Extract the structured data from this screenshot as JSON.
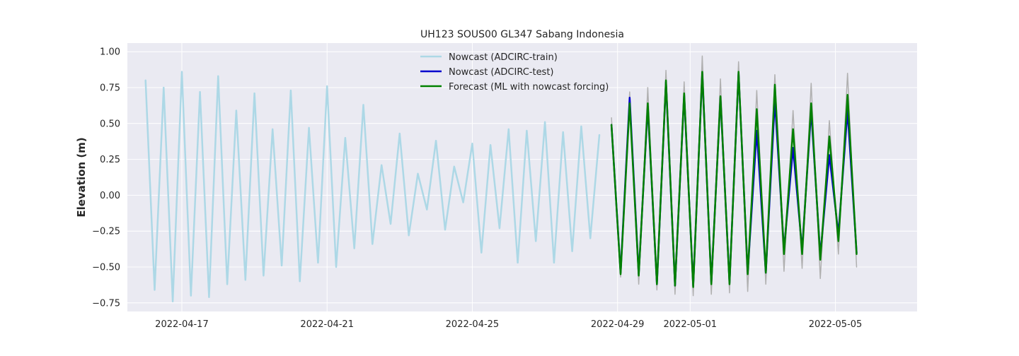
{
  "chart_data": {
    "type": "line",
    "title": "UH123 SOUS00 GL347 Sabang Indonesia",
    "xlabel": "",
    "ylabel": "Elevation (m)",
    "x_type": "date",
    "xlim": [
      "2022-04-15T12:00",
      "2022-05-07T06:00"
    ],
    "ylim": [
      -0.81,
      1.06
    ],
    "x_ticks": [
      "2022-04-17",
      "2022-04-21",
      "2022-04-25",
      "2022-04-29",
      "2022-05-01",
      "2022-05-05"
    ],
    "y_ticks": [
      1.0,
      0.75,
      0.5,
      0.25,
      0.0,
      -0.25,
      -0.5,
      -0.75
    ],
    "y_tick_labels": [
      "1.00",
      "0.75",
      "0.50",
      "0.25",
      "0.00",
      "−0.25",
      "−0.50",
      "−0.75"
    ],
    "grid": true,
    "background": "#eaeaf2",
    "legend_position": "upper-center",
    "series": [
      {
        "name": "",
        "color": "#b0b0b0",
        "x": [
          "2022-04-28T20:00",
          "2022-04-29T02:00",
          "2022-04-29T08:00",
          "2022-04-29T14:00",
          "2022-04-29T20:00",
          "2022-04-30T02:00",
          "2022-04-30T08:00",
          "2022-04-30T14:00",
          "2022-04-30T20:00",
          "2022-05-01T02:00",
          "2022-05-01T08:00",
          "2022-05-01T14:00",
          "2022-05-01T20:00",
          "2022-05-02T02:00",
          "2022-05-02T08:00",
          "2022-05-02T14:00",
          "2022-05-02T20:00",
          "2022-05-03T02:00",
          "2022-05-03T08:00",
          "2022-05-03T14:00",
          "2022-05-03T20:00",
          "2022-05-04T02:00",
          "2022-05-04T08:00",
          "2022-05-04T14:00",
          "2022-05-04T20:00",
          "2022-05-05T02:00",
          "2022-05-05T08:00",
          "2022-05-05T14:00"
        ],
        "values": [
          0.54,
          -0.57,
          0.72,
          -0.62,
          0.75,
          -0.66,
          0.87,
          -0.69,
          0.79,
          -0.7,
          0.97,
          -0.69,
          0.81,
          -0.68,
          0.93,
          -0.67,
          0.73,
          -0.62,
          0.84,
          -0.53,
          0.59,
          -0.51,
          0.78,
          -0.58,
          0.52,
          -0.41,
          0.85,
          -0.5
        ]
      },
      {
        "name": "Nowcast (ADCIRC-train)",
        "color": "#add8e6",
        "x": [
          "2022-04-16T00:00",
          "2022-04-16T06:00",
          "2022-04-16T12:00",
          "2022-04-16T18:00",
          "2022-04-17T00:00",
          "2022-04-17T06:00",
          "2022-04-17T12:00",
          "2022-04-17T18:00",
          "2022-04-18T00:00",
          "2022-04-18T06:00",
          "2022-04-18T12:00",
          "2022-04-18T18:00",
          "2022-04-19T00:00",
          "2022-04-19T06:00",
          "2022-04-19T12:00",
          "2022-04-19T18:00",
          "2022-04-20T00:00",
          "2022-04-20T06:00",
          "2022-04-20T12:00",
          "2022-04-20T18:00",
          "2022-04-21T00:00",
          "2022-04-21T06:00",
          "2022-04-21T12:00",
          "2022-04-21T18:00",
          "2022-04-22T00:00",
          "2022-04-22T06:00",
          "2022-04-22T12:00",
          "2022-04-22T18:00",
          "2022-04-23T00:00",
          "2022-04-23T06:00",
          "2022-04-23T12:00",
          "2022-04-23T18:00",
          "2022-04-24T00:00",
          "2022-04-24T06:00",
          "2022-04-24T12:00",
          "2022-04-24T18:00",
          "2022-04-25T00:00",
          "2022-04-25T06:00",
          "2022-04-25T12:00",
          "2022-04-25T18:00",
          "2022-04-26T00:00",
          "2022-04-26T06:00",
          "2022-04-26T12:00",
          "2022-04-26T18:00",
          "2022-04-27T00:00",
          "2022-04-27T06:00",
          "2022-04-27T12:00",
          "2022-04-27T18:00",
          "2022-04-28T00:00",
          "2022-04-28T06:00",
          "2022-04-28T12:00"
        ],
        "values": [
          0.8,
          -0.66,
          0.75,
          -0.74,
          0.86,
          -0.7,
          0.72,
          -0.71,
          0.83,
          -0.62,
          0.59,
          -0.59,
          0.71,
          -0.56,
          0.46,
          -0.49,
          0.73,
          -0.6,
          0.47,
          -0.47,
          0.76,
          -0.5,
          0.4,
          -0.37,
          0.63,
          -0.34,
          0.21,
          -0.2,
          0.43,
          -0.28,
          0.15,
          -0.1,
          0.38,
          -0.24,
          0.2,
          -0.05,
          0.36,
          -0.4,
          0.35,
          -0.23,
          0.46,
          -0.47,
          0.45,
          -0.32,
          0.51,
          -0.47,
          0.44,
          -0.39,
          0.48,
          -0.3,
          0.42
        ]
      },
      {
        "name": "Nowcast (ADCIRC-test)",
        "color": "#0000cd",
        "x": [
          "2022-04-28T20:00",
          "2022-04-29T02:00",
          "2022-04-29T08:00",
          "2022-04-29T14:00",
          "2022-04-29T20:00",
          "2022-04-30T02:00",
          "2022-04-30T08:00",
          "2022-04-30T14:00",
          "2022-04-30T20:00",
          "2022-05-01T02:00",
          "2022-05-01T08:00",
          "2022-05-01T14:00",
          "2022-05-01T20:00",
          "2022-05-02T02:00",
          "2022-05-02T08:00",
          "2022-05-02T14:00",
          "2022-05-02T20:00",
          "2022-05-03T02:00",
          "2022-05-03T08:00",
          "2022-05-03T14:00",
          "2022-05-03T20:00",
          "2022-05-04T02:00",
          "2022-05-04T08:00",
          "2022-05-04T14:00",
          "2022-05-04T20:00",
          "2022-05-05T02:00",
          "2022-05-05T08:00",
          "2022-05-05T14:00"
        ],
        "values": [
          0.49,
          -0.54,
          0.68,
          -0.55,
          0.62,
          -0.62,
          0.79,
          -0.63,
          0.7,
          -0.63,
          0.85,
          -0.61,
          0.68,
          -0.61,
          0.85,
          -0.54,
          0.45,
          -0.54,
          0.66,
          -0.38,
          0.33,
          -0.38,
          0.59,
          -0.42,
          0.28,
          -0.27,
          0.59,
          -0.4
        ]
      },
      {
        "name": "Forecast (ML with nowcast forcing)",
        "color": "#008000",
        "x": [
          "2022-04-28T20:00",
          "2022-04-29T02:00",
          "2022-04-29T08:00",
          "2022-04-29T14:00",
          "2022-04-29T20:00",
          "2022-04-30T02:00",
          "2022-04-30T08:00",
          "2022-04-30T14:00",
          "2022-04-30T20:00",
          "2022-05-01T02:00",
          "2022-05-01T08:00",
          "2022-05-01T14:00",
          "2022-05-01T20:00",
          "2022-05-02T02:00",
          "2022-05-02T08:00",
          "2022-05-02T14:00",
          "2022-05-02T20:00",
          "2022-05-03T02:00",
          "2022-05-03T08:00",
          "2022-05-03T14:00",
          "2022-05-03T20:00",
          "2022-05-04T02:00",
          "2022-05-04T08:00",
          "2022-05-04T14:00",
          "2022-05-04T20:00",
          "2022-05-05T02:00",
          "2022-05-05T08:00",
          "2022-05-05T14:00"
        ],
        "values": [
          0.49,
          -0.55,
          0.64,
          -0.56,
          0.64,
          -0.62,
          0.8,
          -0.63,
          0.71,
          -0.64,
          0.86,
          -0.62,
          0.69,
          -0.62,
          0.86,
          -0.55,
          0.6,
          -0.54,
          0.77,
          -0.41,
          0.46,
          -0.41,
          0.64,
          -0.45,
          0.41,
          -0.32,
          0.7,
          -0.41
        ]
      }
    ]
  }
}
